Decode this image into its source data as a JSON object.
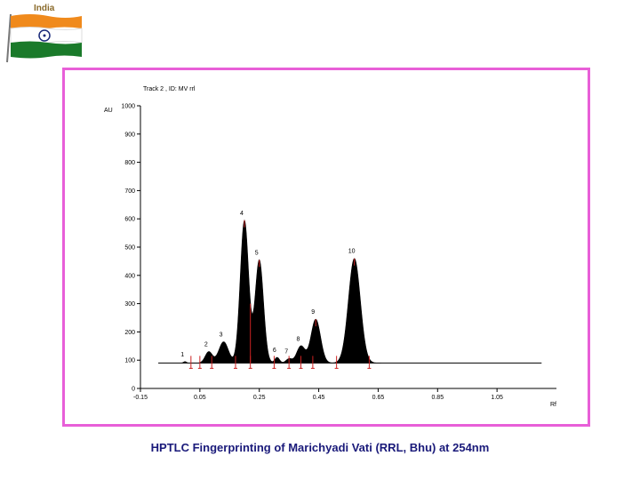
{
  "header": {
    "flag_label": "India",
    "flag_colors": {
      "saffron": "#f08a1c",
      "white": "#ffffff",
      "green": "#1a7a2a",
      "chakra": "#1a2a7a"
    }
  },
  "caption": "HPTLC Fingerprinting of  Marichyadi  Vati (RRL, Bhu) at 254nm",
  "colors": {
    "frame": "#e85fd8",
    "fill": "#000000",
    "marker": "#cc2222",
    "baseline": "#000000"
  },
  "chart_data": {
    "type": "area",
    "title": "Track  2 , ID: MV rrl",
    "xlabel": "Rf",
    "ylabel": "AU",
    "xlim": [
      -0.15,
      1.25
    ],
    "ylim": [
      0,
      1000
    ],
    "x_ticks": [
      "-0.15",
      "0.05",
      "0.25",
      "0.45",
      "0.65",
      "0.85",
      "1.05"
    ],
    "x_tick_values": [
      -0.15,
      0.05,
      0.25,
      0.45,
      0.65,
      0.85,
      1.05
    ],
    "y_ticks": [
      "0",
      "100",
      "200",
      "300",
      "400",
      "500",
      "600",
      "700",
      "800",
      "900",
      "1000"
    ],
    "y_tick_values": [
      0,
      100,
      200,
      300,
      400,
      500,
      600,
      700,
      800,
      900,
      1000
    ],
    "baseline": 90,
    "peaks": [
      {
        "label": "1",
        "rf": 0.0,
        "height": 95,
        "width": 0.005
      },
      {
        "label": "2",
        "rf": 0.08,
        "height": 130,
        "width": 0.012
      },
      {
        "label": "3",
        "rf": 0.13,
        "height": 165,
        "width": 0.016
      },
      {
        "label": "4",
        "rf": 0.2,
        "height": 595,
        "width": 0.014
      },
      {
        "label": "5",
        "rf": 0.25,
        "height": 455,
        "width": 0.014
      },
      {
        "label": "6",
        "rf": 0.31,
        "height": 110,
        "width": 0.008
      },
      {
        "label": "7",
        "rf": 0.35,
        "height": 105,
        "width": 0.01
      },
      {
        "label": "8",
        "rf": 0.39,
        "height": 150,
        "width": 0.014
      },
      {
        "label": "9",
        "rf": 0.44,
        "height": 245,
        "width": 0.016
      },
      {
        "label": "10",
        "rf": 0.57,
        "height": 460,
        "width": 0.02
      }
    ],
    "markers_rf": [
      0.02,
      0.05,
      0.09,
      0.17,
      0.22,
      0.3,
      0.35,
      0.39,
      0.43,
      0.51,
      0.62
    ],
    "grid": false,
    "legend": "none"
  }
}
